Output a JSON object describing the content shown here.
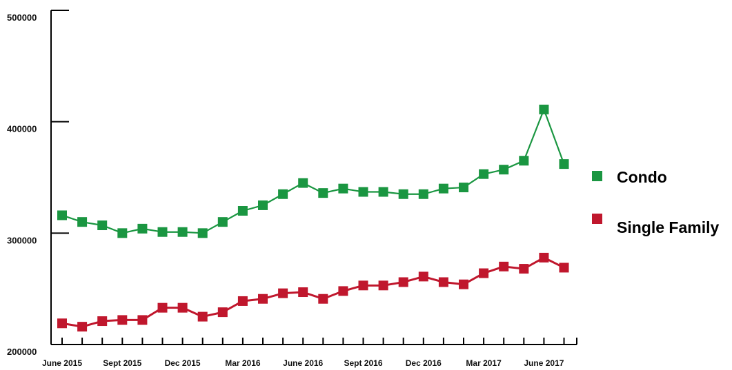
{
  "chart_data": {
    "type": "line",
    "title": "",
    "xlabel": "",
    "ylabel": "",
    "ylim": [
      200000,
      500000
    ],
    "y_ticks": [
      "500000",
      "400000",
      "300000",
      "200000"
    ],
    "y_tick_values": [
      500000,
      400000,
      300000,
      200000
    ],
    "grid": false,
    "legend_position": "right",
    "x_ticks": [
      "June 2015",
      "Sept 2015",
      "Dec 2015",
      "Mar 2016",
      "June 2016",
      "Sept 2016",
      "Dec 2016",
      "Mar 2017",
      "June 2017"
    ],
    "x_tick_index": [
      0,
      3,
      6,
      9,
      12,
      15,
      18,
      21,
      24
    ],
    "x": [
      "Jun 2015",
      "Jul 2015",
      "Aug 2015",
      "Sep 2015",
      "Oct 2015",
      "Nov 2015",
      "Dec 2015",
      "Jan 2016",
      "Feb 2016",
      "Mar 2016",
      "Apr 2016",
      "May 2016",
      "Jun 2016",
      "Jul 2016",
      "Aug 2016",
      "Sep 2016",
      "Oct 2016",
      "Nov 2016",
      "Dec 2016",
      "Jan 2017",
      "Feb 2017",
      "Mar 2017",
      "Apr 2017",
      "May 2017",
      "Jun 2017",
      "Jul 2017"
    ],
    "series": [
      {
        "name": "Condo",
        "color": "#1a9641",
        "values": [
          316000,
          310000,
          307000,
          300000,
          304000,
          301000,
          301000,
          300000,
          310000,
          320000,
          325000,
          335000,
          345000,
          336000,
          340000,
          337000,
          337000,
          335000,
          335000,
          340000,
          341000,
          353000,
          357000,
          365000,
          411000,
          362000
        ]
      },
      {
        "name": "Single Family",
        "color": "#c0172d",
        "values": [
          219000,
          216000,
          221000,
          222000,
          222000,
          233000,
          233000,
          225000,
          229000,
          239000,
          241000,
          246000,
          247000,
          241000,
          248000,
          253000,
          253000,
          256000,
          261000,
          256000,
          254000,
          264000,
          270000,
          268000,
          278000,
          269000
        ]
      }
    ]
  }
}
